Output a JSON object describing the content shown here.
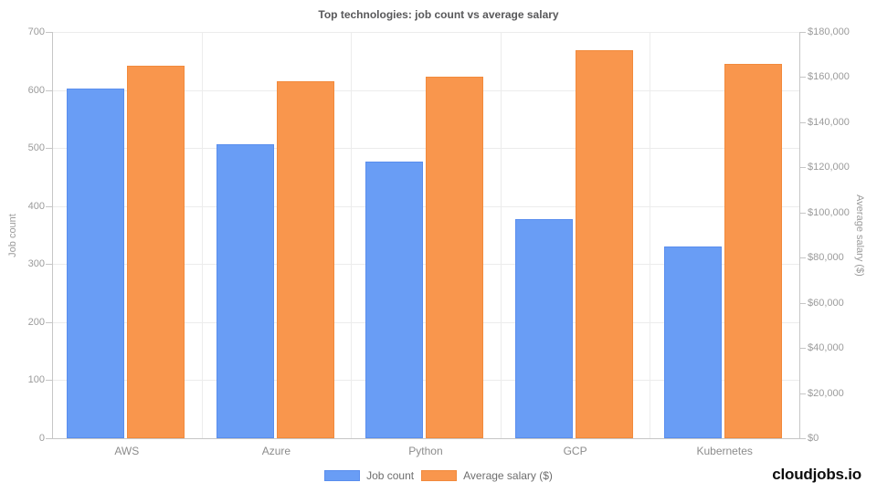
{
  "title": "Top technologies: job count vs average salary",
  "footer": {
    "brand": "cloudjobs.io"
  },
  "colors": {
    "job_count_fill": "#699df5",
    "job_count_border": "#5a8eee",
    "avg_salary_fill": "#f9964d",
    "avg_salary_border": "#f28a3c",
    "background": "#ffffff",
    "gridline": "#ececec",
    "axis_line": "#c6c6c6"
  },
  "chart_data": {
    "type": "bar",
    "title": "Top technologies: job count vs average salary",
    "categories": [
      "AWS",
      "Azure",
      "Python",
      "GCP",
      "Kubernetes"
    ],
    "series": [
      {
        "name": "Job count",
        "axis": "left",
        "color": "#699df5",
        "border_color": "#5a8eee",
        "values": [
          602,
          507,
          476,
          378,
          330
        ]
      },
      {
        "name": "Average salary ($)",
        "axis": "right",
        "color": "#f9964d",
        "border_color": "#f28a3c",
        "values": [
          165000,
          158000,
          160000,
          172000,
          166000
        ]
      }
    ],
    "left_axis": {
      "label": "Job count",
      "min": 0,
      "max": 700,
      "step": 100,
      "tick_labels": [
        "0",
        "100",
        "200",
        "300",
        "400",
        "500",
        "600",
        "700"
      ]
    },
    "right_axis": {
      "label": "Average salary ($)",
      "min": 0,
      "max": 180000,
      "step": 20000,
      "tick_labels": [
        "$0",
        "$20,000",
        "$40,000",
        "$60,000",
        "$80,000",
        "$100,000",
        "$120,000",
        "$140,000",
        "$160,000",
        "$180,000"
      ]
    },
    "legend": {
      "position": "bottom",
      "items": [
        "Job count",
        "Average salary ($)"
      ]
    },
    "grid": true
  }
}
